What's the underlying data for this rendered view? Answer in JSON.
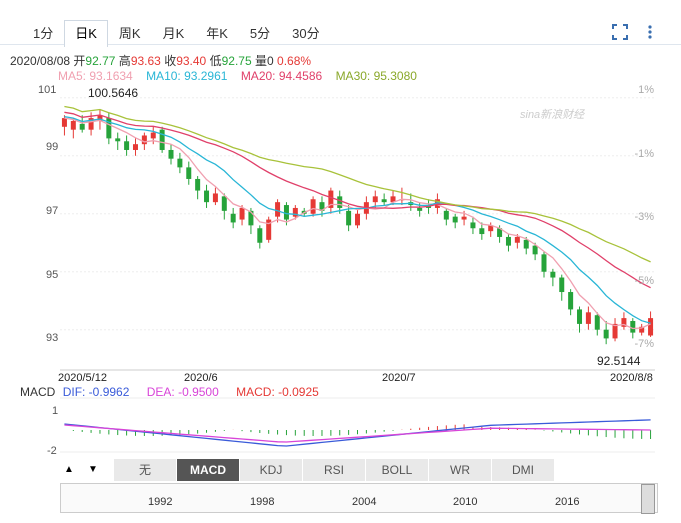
{
  "tabs": [
    "1分",
    "日K",
    "周K",
    "月K",
    "年K",
    "5分",
    "30分"
  ],
  "active_tab": "日K",
  "quote": {
    "date": "2020/08/08",
    "open_label": "开",
    "open": "92.77",
    "high_label": "高",
    "high": "93.63",
    "close_label": "收",
    "close": "93.40",
    "low_label": "低",
    "low": "92.75",
    "vol_label": "量",
    "vol": "0",
    "change": "0.68%"
  },
  "ma": {
    "ma5": "MA5: 93.1634",
    "ma10": "MA10: 93.2961",
    "ma20": "MA20: 94.4586",
    "ma30": "MA30: 95.3080"
  },
  "colors": {
    "ma5": "#f0a0b0",
    "ma10": "#29b6d6",
    "ma20": "#e0406a",
    "ma30": "#a8c23a",
    "up": "#e53935",
    "down": "#26a33a",
    "dif": "#3a5bd9",
    "dea": "#d845d8"
  },
  "watermark": "sina新浪财经",
  "chart_data": {
    "type": "candlestick",
    "y_ticks": [
      "101",
      "99",
      "97",
      "95",
      "93"
    ],
    "pct_ticks": [
      "1%",
      "-1%",
      "-3%",
      "-5%",
      "-7%"
    ],
    "x_labels": [
      "2020/5/12",
      "2020/6",
      "2020/7",
      "2020/8/8"
    ],
    "ylim": [
      92.3,
      101.2
    ],
    "high_mark": "100.5646",
    "low_mark": "92.5144",
    "candles": [
      [
        100.0,
        100.3,
        99.7,
        100.4
      ],
      [
        99.9,
        100.2,
        99.6,
        100.3
      ],
      [
        100.1,
        99.9,
        99.8,
        100.4
      ],
      [
        99.9,
        100.3,
        99.7,
        100.5
      ],
      [
        100.2,
        100.4,
        99.9,
        100.6
      ],
      [
        100.3,
        99.6,
        99.4,
        100.5
      ],
      [
        99.6,
        99.5,
        99.2,
        99.8
      ],
      [
        99.5,
        99.2,
        99.0,
        99.7
      ],
      [
        99.2,
        99.4,
        99.0,
        99.6
      ],
      [
        99.4,
        99.7,
        99.2,
        99.8
      ],
      [
        99.6,
        99.8,
        99.4,
        100.0
      ],
      [
        99.9,
        99.2,
        99.1,
        100.0
      ],
      [
        99.2,
        98.9,
        98.7,
        99.4
      ],
      [
        98.9,
        98.6,
        98.4,
        99.1
      ],
      [
        98.6,
        98.2,
        98.0,
        98.8
      ],
      [
        98.2,
        97.8,
        97.5,
        98.3
      ],
      [
        97.8,
        97.4,
        97.2,
        98.0
      ],
      [
        97.4,
        97.7,
        97.3,
        97.9
      ],
      [
        97.6,
        97.1,
        96.8,
        97.7
      ],
      [
        97.0,
        96.7,
        96.5,
        97.2
      ],
      [
        96.8,
        97.2,
        96.6,
        97.3
      ],
      [
        97.1,
        96.6,
        96.3,
        97.2
      ],
      [
        96.5,
        96.0,
        95.8,
        96.6
      ],
      [
        96.1,
        96.8,
        96.0,
        96.9
      ],
      [
        96.9,
        97.4,
        96.7,
        97.5
      ],
      [
        97.3,
        96.8,
        96.6,
        97.4
      ],
      [
        96.9,
        97.2,
        96.8,
        97.3
      ],
      [
        97.1,
        97.0,
        96.9,
        97.2
      ],
      [
        97.0,
        97.5,
        96.9,
        97.6
      ],
      [
        97.4,
        97.1,
        96.9,
        97.6
      ],
      [
        97.2,
        97.8,
        97.0,
        97.9
      ],
      [
        97.6,
        97.2,
        97.0,
        97.8
      ],
      [
        97.1,
        96.6,
        96.4,
        97.3
      ],
      [
        96.6,
        97.0,
        96.5,
        97.2
      ],
      [
        97.0,
        97.4,
        96.8,
        97.6
      ],
      [
        97.4,
        97.6,
        97.2,
        97.8
      ],
      [
        97.5,
        97.4,
        97.3,
        97.7
      ],
      [
        97.4,
        97.6,
        97.3,
        97.8
      ],
      [
        97.5,
        97.5,
        97.3,
        97.9
      ],
      [
        97.4,
        97.3,
        97.1,
        97.7
      ],
      [
        97.2,
        97.1,
        96.9,
        97.4
      ],
      [
        97.3,
        97.2,
        97.0,
        97.5
      ],
      [
        97.2,
        97.5,
        97.0,
        97.7
      ],
      [
        97.1,
        96.8,
        96.6,
        97.2
      ],
      [
        96.9,
        96.7,
        96.5,
        97.0
      ],
      [
        96.8,
        96.9,
        96.6,
        97.1
      ],
      [
        96.7,
        96.5,
        96.3,
        96.9
      ],
      [
        96.5,
        96.3,
        96.1,
        96.7
      ],
      [
        96.4,
        96.6,
        96.2,
        96.7
      ],
      [
        96.5,
        96.2,
        96.0,
        96.6
      ],
      [
        96.2,
        95.9,
        95.7,
        96.3
      ],
      [
        96.0,
        96.2,
        95.8,
        96.3
      ],
      [
        96.1,
        95.8,
        95.6,
        96.2
      ],
      [
        95.9,
        95.6,
        95.4,
        96.0
      ],
      [
        95.6,
        95.0,
        94.8,
        95.7
      ],
      [
        95.0,
        94.8,
        94.5,
        95.1
      ],
      [
        94.8,
        94.3,
        94.0,
        94.9
      ],
      [
        94.3,
        93.7,
        93.5,
        94.4
      ],
      [
        93.7,
        93.2,
        92.9,
        93.8
      ],
      [
        93.2,
        93.6,
        93.0,
        93.8
      ],
      [
        93.5,
        93.0,
        92.8,
        93.6
      ],
      [
        93.0,
        92.7,
        92.5,
        93.3
      ],
      [
        92.7,
        93.2,
        92.6,
        93.4
      ],
      [
        93.1,
        93.4,
        93.0,
        93.6
      ],
      [
        93.3,
        92.9,
        92.7,
        93.4
      ],
      [
        92.9,
        93.1,
        92.8,
        93.2
      ],
      [
        92.8,
        93.4,
        92.75,
        93.63
      ]
    ],
    "macd_ticks": [
      "1",
      "-2"
    ]
  },
  "macd": {
    "title": "MACD",
    "dif": "DIF: -0.9962",
    "dea": "DEA: -0.9500",
    "macd": "MACD: -0.0925"
  },
  "indicators": [
    "无",
    "MACD",
    "KDJ",
    "RSI",
    "BOLL",
    "WR",
    "DMI"
  ],
  "active_indicator": "MACD",
  "timeline_years": [
    "1992",
    "1998",
    "2004",
    "2010",
    "2016"
  ]
}
